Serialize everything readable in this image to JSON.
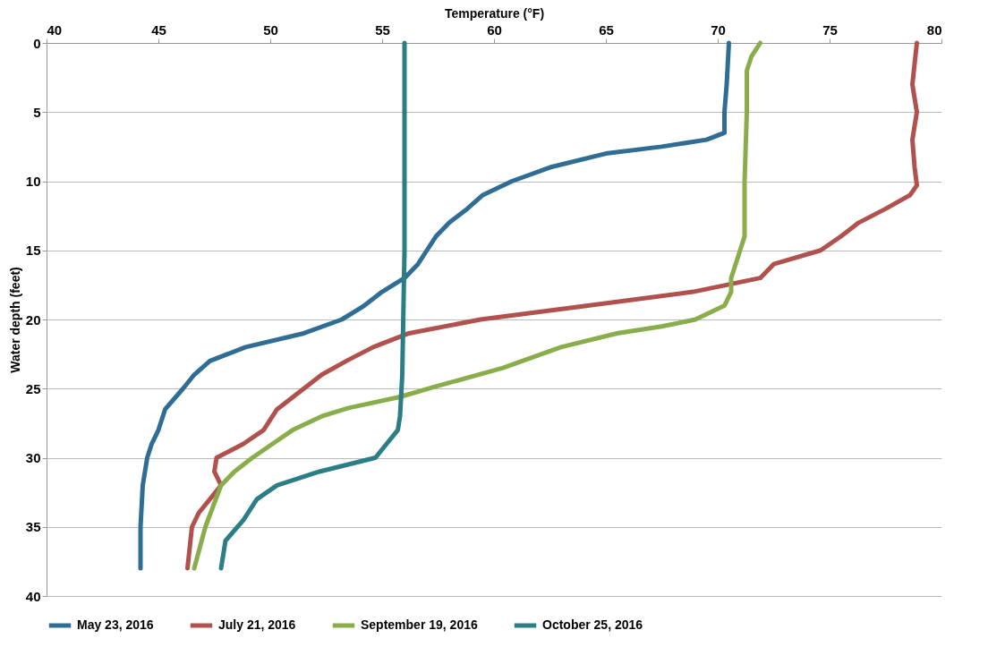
{
  "chart_data": {
    "type": "line",
    "xlabel": "Temperature (°F)",
    "ylabel": "Water depth (feet)",
    "xlim": [
      40,
      80
    ],
    "xticks": [
      40,
      45,
      50,
      55,
      60,
      65,
      70,
      75,
      80
    ],
    "ylim": [
      40,
      0
    ],
    "yticks": [
      0,
      5,
      10,
      15,
      20,
      25,
      30,
      35,
      40
    ],
    "grid": "y",
    "legend": "bottom",
    "marker": "none",
    "line_style": "solid",
    "series": [
      {
        "name": "May 23, 2016",
        "color": "#2f6d94",
        "x": [
          70.5,
          70.4,
          70.3,
          70.3,
          69.5,
          67.5,
          65,
          62.5,
          60.8,
          59.5,
          58.8,
          58,
          57.4,
          57,
          56.6,
          56,
          55,
          54.2,
          53.2,
          51.5,
          48.9,
          47.3,
          46.6,
          46.1,
          45.3,
          45,
          44.7,
          44.5,
          44.3,
          44.2,
          44.2
        ],
        "values": [
          0,
          3,
          5,
          6.5,
          7,
          7.5,
          8,
          9,
          10,
          11,
          12,
          13,
          14,
          15,
          16,
          17,
          18,
          19,
          20,
          21,
          22,
          23,
          24,
          25,
          26.5,
          28,
          29,
          30,
          32,
          35,
          38
        ]
      },
      {
        "name": "July 21, 2016",
        "color": "#b0514d",
        "x": [
          78.9,
          78.7,
          78.9,
          78.7,
          78.8,
          78.9,
          78.6,
          77.5,
          76.3,
          75.5,
          74.6,
          72.5,
          71.9,
          68.9,
          64.2,
          59.4,
          56.2,
          54.6,
          53.4,
          52.3,
          51.5,
          50.3,
          49.7,
          48.8,
          47.6,
          47.5,
          47.8,
          47.3,
          46.8,
          46.5,
          46.3
        ],
        "values": [
          0,
          3,
          5,
          7,
          9,
          10.3,
          11,
          12,
          13,
          14,
          15,
          16,
          17,
          18,
          19,
          20,
          21,
          22,
          23,
          24,
          25,
          26.5,
          28,
          29,
          30,
          31,
          32,
          33,
          34,
          35,
          38
        ]
      },
      {
        "name": "September 19, 2016",
        "color": "#8aad4b",
        "x": [
          71.9,
          71.5,
          71.3,
          71.3,
          71.2,
          71.2,
          71,
          70.8,
          70.6,
          70.6,
          70.3,
          69,
          67.5,
          65.5,
          63,
          60.4,
          57.5,
          55.8,
          53.5,
          52.3,
          51,
          50.1,
          49.2,
          48.4,
          47.8,
          47.1,
          46.6
        ],
        "values": [
          0,
          1,
          2,
          5,
          10,
          14,
          15,
          16,
          17,
          18,
          19,
          20,
          20.5,
          21,
          22,
          23.5,
          24.8,
          25.6,
          26.4,
          27,
          28,
          29,
          30,
          31,
          32,
          35,
          38
        ]
      },
      {
        "name": "October 25, 2016",
        "color": "#2b7d86",
        "x": [
          56,
          56,
          55.9,
          55.8,
          55.7,
          55.2,
          54.7,
          52.2,
          50.3,
          49.4,
          48.8,
          48,
          47.8
        ],
        "values": [
          0,
          15,
          24,
          27,
          28,
          29,
          30,
          31,
          32,
          33,
          34.5,
          36,
          38
        ]
      }
    ]
  }
}
